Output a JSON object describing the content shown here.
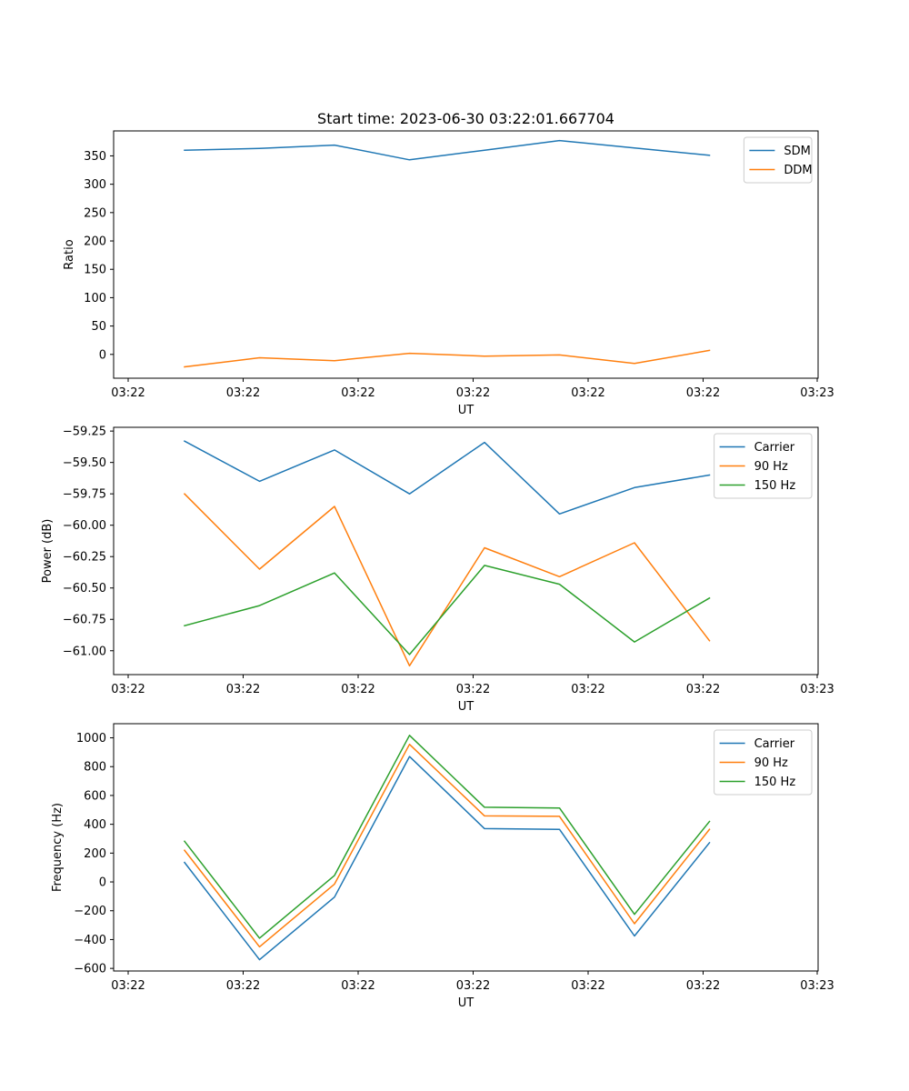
{
  "title": "Start time: 2023-06-30 03:22:01.667704",
  "colors": {
    "blue": "#1f77b4",
    "orange": "#ff7f0e",
    "green": "#2ca02c"
  },
  "chart_data": [
    {
      "type": "line",
      "title": "Start time: 2023-06-30 03:22:01.667704",
      "xlabel": "UT",
      "ylabel": "Ratio",
      "x_tick_labels": [
        "03:22",
        "03:22",
        "03:22",
        "03:22",
        "03:22",
        "03:22",
        "03:23"
      ],
      "y_ticks": [
        0,
        50,
        100,
        150,
        200,
        250,
        300,
        350
      ],
      "y_tick_labels": [
        "0",
        "50",
        "100",
        "150",
        "200",
        "250",
        "300",
        "350"
      ],
      "ylim": [
        -42,
        394
      ],
      "legend_position": "upper right",
      "series": [
        {
          "name": "SDM",
          "color": "#1f77b4",
          "values": [
            360,
            363,
            369,
            343,
            360,
            377,
            364,
            351
          ]
        },
        {
          "name": "DDM",
          "color": "#ff7f0e",
          "values": [
            -22,
            -6,
            -11,
            2,
            -3,
            -1,
            -16,
            7
          ]
        }
      ]
    },
    {
      "type": "line",
      "xlabel": "UT",
      "ylabel": "Power (dB)",
      "x_tick_labels": [
        "03:22",
        "03:22",
        "03:22",
        "03:22",
        "03:22",
        "03:22",
        "03:23"
      ],
      "y_ticks": [
        -61.0,
        -60.75,
        -60.5,
        -60.25,
        -60.0,
        -59.75,
        -59.5,
        -59.25
      ],
      "y_tick_labels": [
        "−61.00",
        "−60.75",
        "−60.50",
        "−60.25",
        "−60.00",
        "−59.75",
        "−59.50",
        "−59.25"
      ],
      "ylim": [
        -61.19,
        -59.22
      ],
      "legend_position": "upper right",
      "series": [
        {
          "name": "Carrier",
          "color": "#1f77b4",
          "values": [
            -59.33,
            -59.65,
            -59.4,
            -59.75,
            -59.34,
            -59.91,
            -59.7,
            -59.6
          ]
        },
        {
          "name": "90 Hz",
          "color": "#ff7f0e",
          "values": [
            -59.75,
            -60.35,
            -59.85,
            -61.12,
            -60.18,
            -60.41,
            -60.14,
            -60.92
          ]
        },
        {
          "name": "150 Hz",
          "color": "#2ca02c",
          "values": [
            -60.8,
            -60.64,
            -60.38,
            -61.03,
            -60.32,
            -60.47,
            -60.93,
            -60.58
          ]
        }
      ]
    },
    {
      "type": "line",
      "xlabel": "UT",
      "ylabel": "Frequency (Hz)",
      "x_tick_labels": [
        "03:22",
        "03:22",
        "03:22",
        "03:22",
        "03:22",
        "03:22",
        "03:23"
      ],
      "y_ticks": [
        -600,
        -400,
        -200,
        0,
        200,
        400,
        600,
        800,
        1000
      ],
      "y_tick_labels": [
        "−600",
        "−400",
        "−200",
        "0",
        "200",
        "400",
        "600",
        "800",
        "1000"
      ],
      "ylim": [
        -618,
        1098
      ],
      "legend_position": "upper right",
      "series": [
        {
          "name": "Carrier",
          "color": "#1f77b4",
          "values": [
            135,
            -540,
            -105,
            870,
            370,
            365,
            -375,
            272
          ]
        },
        {
          "name": "90 Hz",
          "color": "#ff7f0e",
          "values": [
            220,
            -450,
            -15,
            955,
            458,
            455,
            -290,
            365
          ]
        },
        {
          "name": "150 Hz",
          "color": "#2ca02c",
          "values": [
            282,
            -390,
            45,
            1017,
            518,
            513,
            -225,
            420
          ]
        }
      ]
    }
  ]
}
